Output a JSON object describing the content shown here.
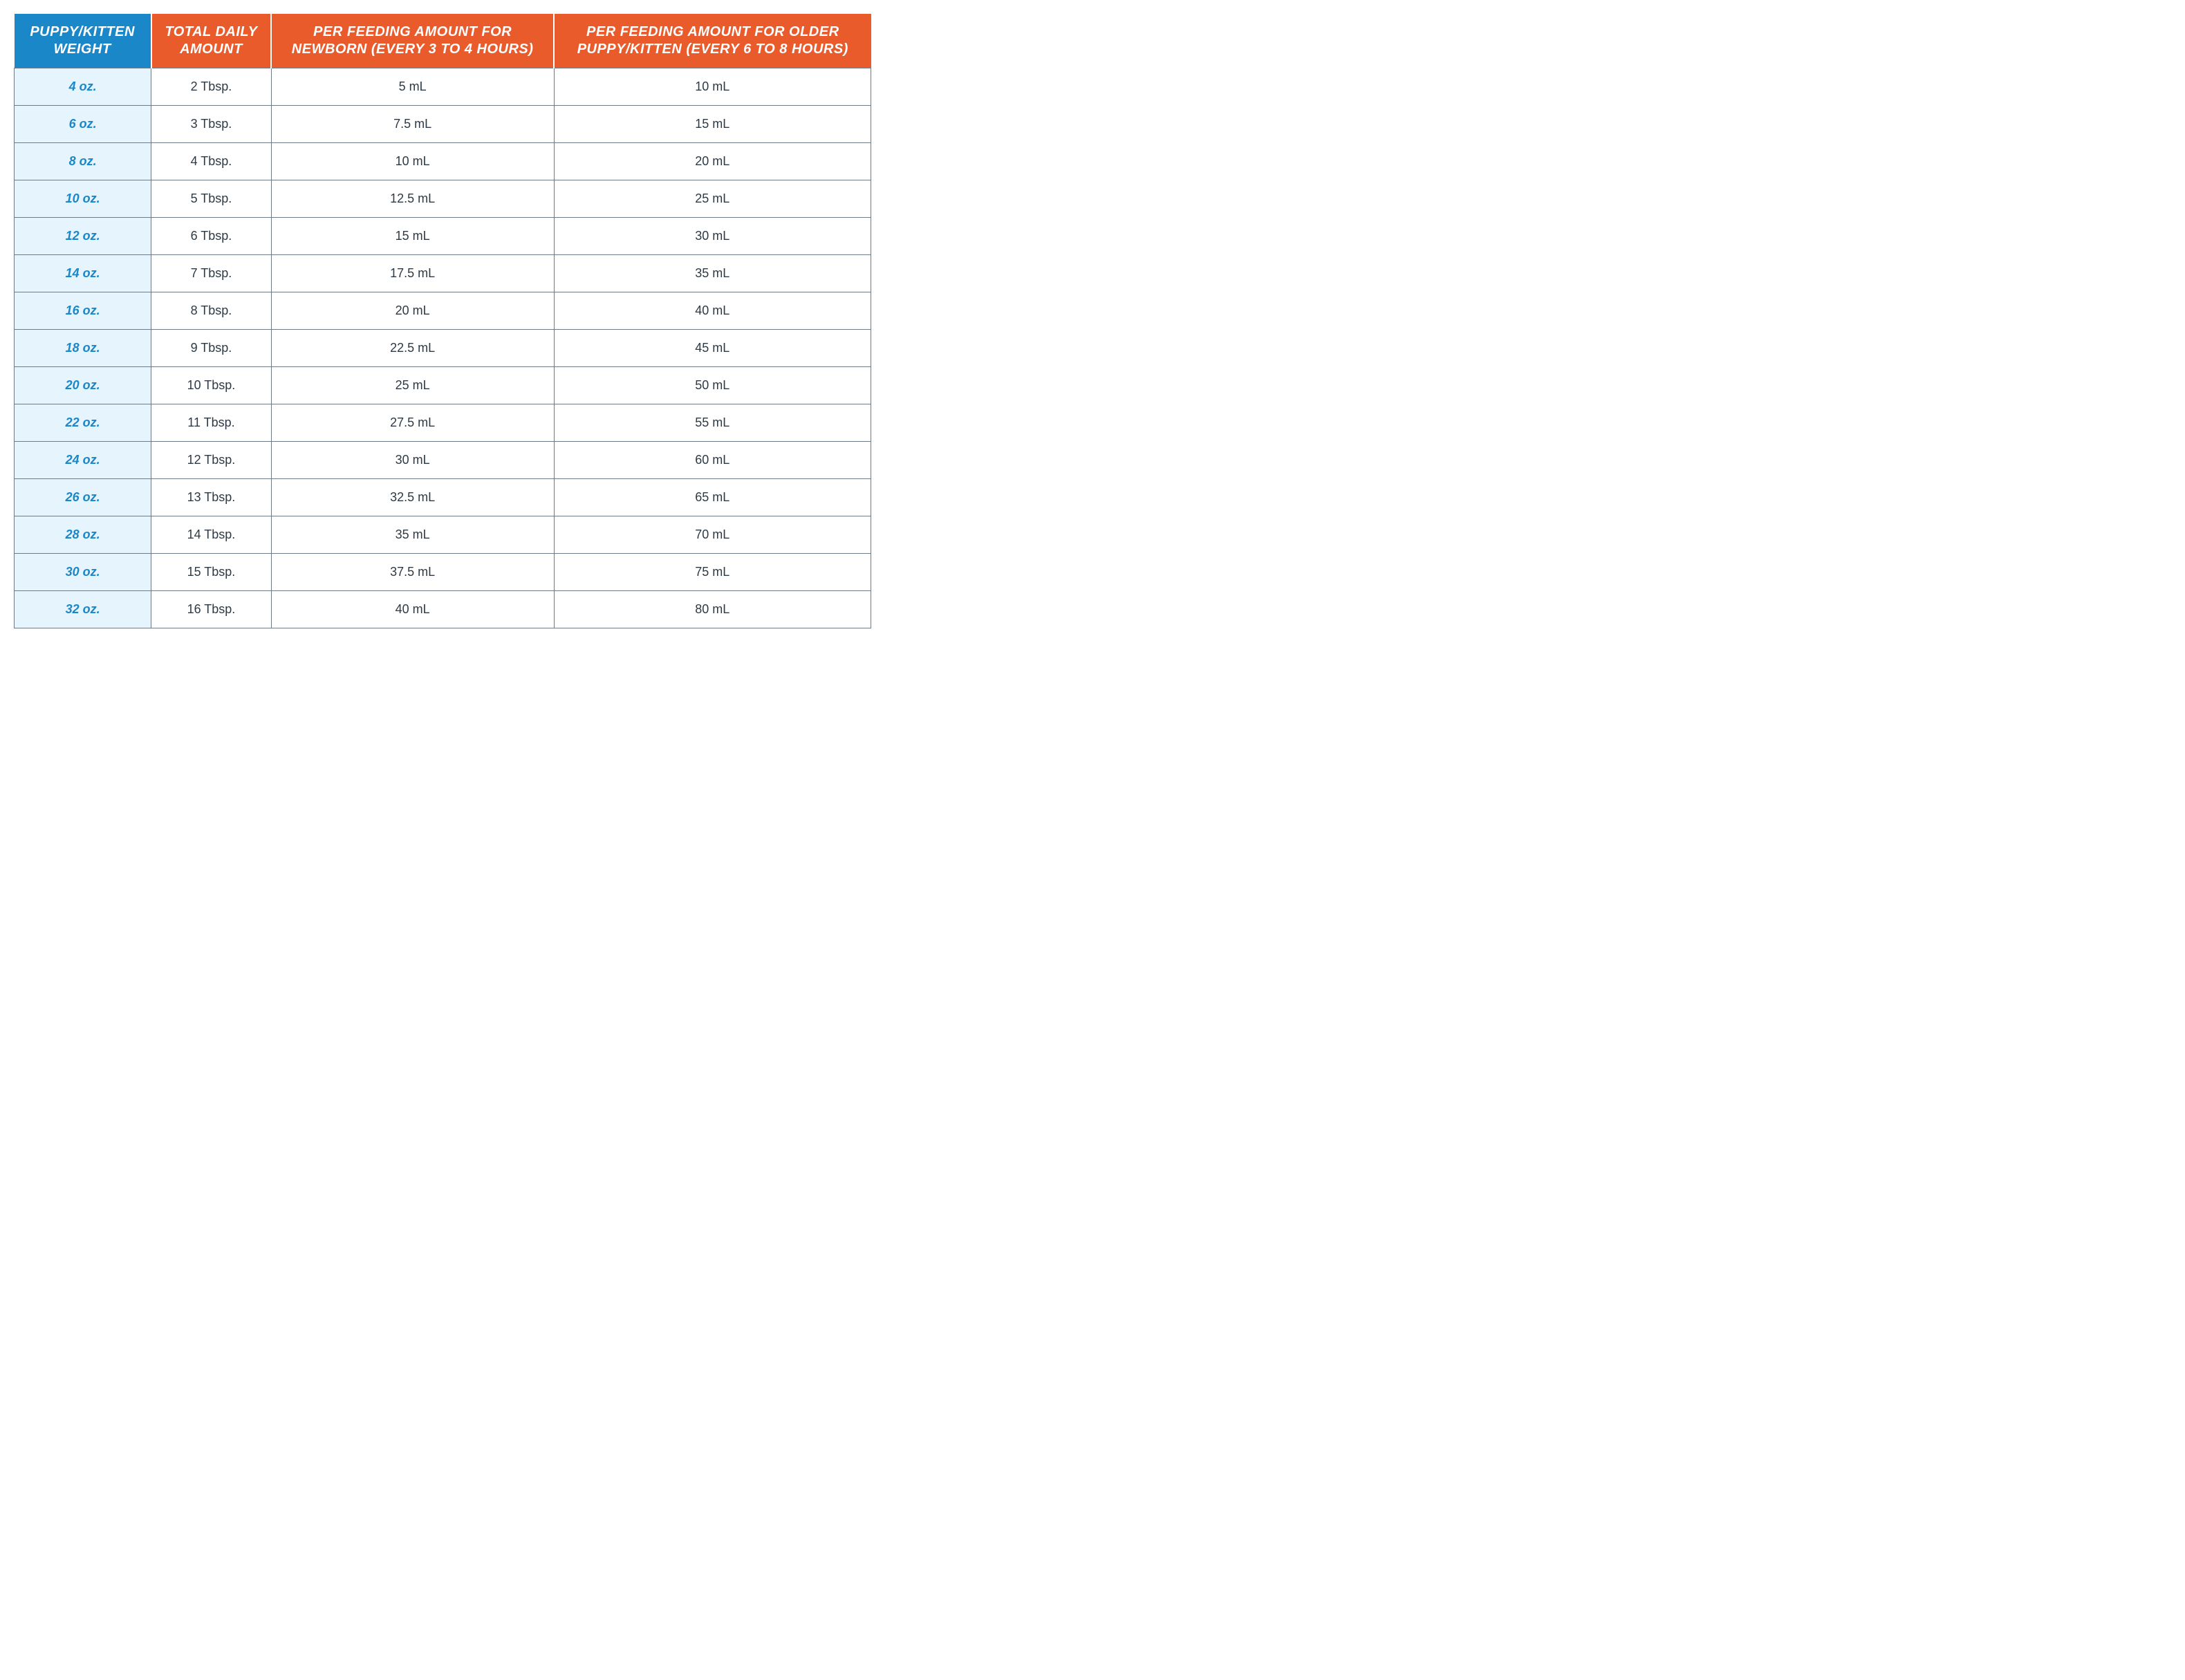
{
  "table": {
    "type": "table",
    "header_blue_bg": "#1a87c9",
    "header_orange_bg": "#ea5b2c",
    "header_text_color": "#ffffff",
    "weight_cell_bg": "#e6f4fd",
    "weight_text_color": "#1a87c9",
    "value_bg": "#ffffff",
    "value_text_color": "#2d3a45",
    "border_color": "#6d7b88",
    "header_fontsize": 20,
    "body_fontsize": 18,
    "columns": [
      {
        "label": "PUPPY/KITTEN WEIGHT",
        "style": "blue",
        "width_pct": 16
      },
      {
        "label": "TOTAL DAILY AMOUNT",
        "style": "orange",
        "width_pct": 14
      },
      {
        "label": "PER FEEDING AMOUNT FOR NEWBORN (EVERY 3 TO 4 HOURS)",
        "style": "orange",
        "width_pct": 33
      },
      {
        "label": "PER FEEDING AMOUNT FOR OLDER PUPPY/KITTEN (EVERY 6 TO 8 HOURS)",
        "style": "orange",
        "width_pct": 37
      }
    ],
    "rows": [
      {
        "weight": "4 oz.",
        "daily": "2 Tbsp.",
        "newborn": "5 mL",
        "older": "10 mL"
      },
      {
        "weight": "6 oz.",
        "daily": "3 Tbsp.",
        "newborn": "7.5 mL",
        "older": "15 mL"
      },
      {
        "weight": "8 oz.",
        "daily": "4 Tbsp.",
        "newborn": "10 mL",
        "older": "20 mL"
      },
      {
        "weight": "10 oz.",
        "daily": "5 Tbsp.",
        "newborn": "12.5 mL",
        "older": "25 mL"
      },
      {
        "weight": "12 oz.",
        "daily": "6 Tbsp.",
        "newborn": "15 mL",
        "older": "30 mL"
      },
      {
        "weight": "14 oz.",
        "daily": "7 Tbsp.",
        "newborn": "17.5 mL",
        "older": "35 mL"
      },
      {
        "weight": "16 oz.",
        "daily": "8 Tbsp.",
        "newborn": "20 mL",
        "older": "40 mL"
      },
      {
        "weight": "18 oz.",
        "daily": "9 Tbsp.",
        "newborn": "22.5 mL",
        "older": "45 mL"
      },
      {
        "weight": "20 oz.",
        "daily": "10 Tbsp.",
        "newborn": "25 mL",
        "older": "50 mL"
      },
      {
        "weight": "22 oz.",
        "daily": "11 Tbsp.",
        "newborn": "27.5 mL",
        "older": "55 mL"
      },
      {
        "weight": "24 oz.",
        "daily": "12 Tbsp.",
        "newborn": "30 mL",
        "older": "60 mL"
      },
      {
        "weight": "26 oz.",
        "daily": "13 Tbsp.",
        "newborn": "32.5 mL",
        "older": "65 mL"
      },
      {
        "weight": "28 oz.",
        "daily": "14 Tbsp.",
        "newborn": "35 mL",
        "older": "70 mL"
      },
      {
        "weight": "30 oz.",
        "daily": "15 Tbsp.",
        "newborn": "37.5 mL",
        "older": "75 mL"
      },
      {
        "weight": "32 oz.",
        "daily": "16 Tbsp.",
        "newborn": "40 mL",
        "older": "80 mL"
      }
    ]
  }
}
